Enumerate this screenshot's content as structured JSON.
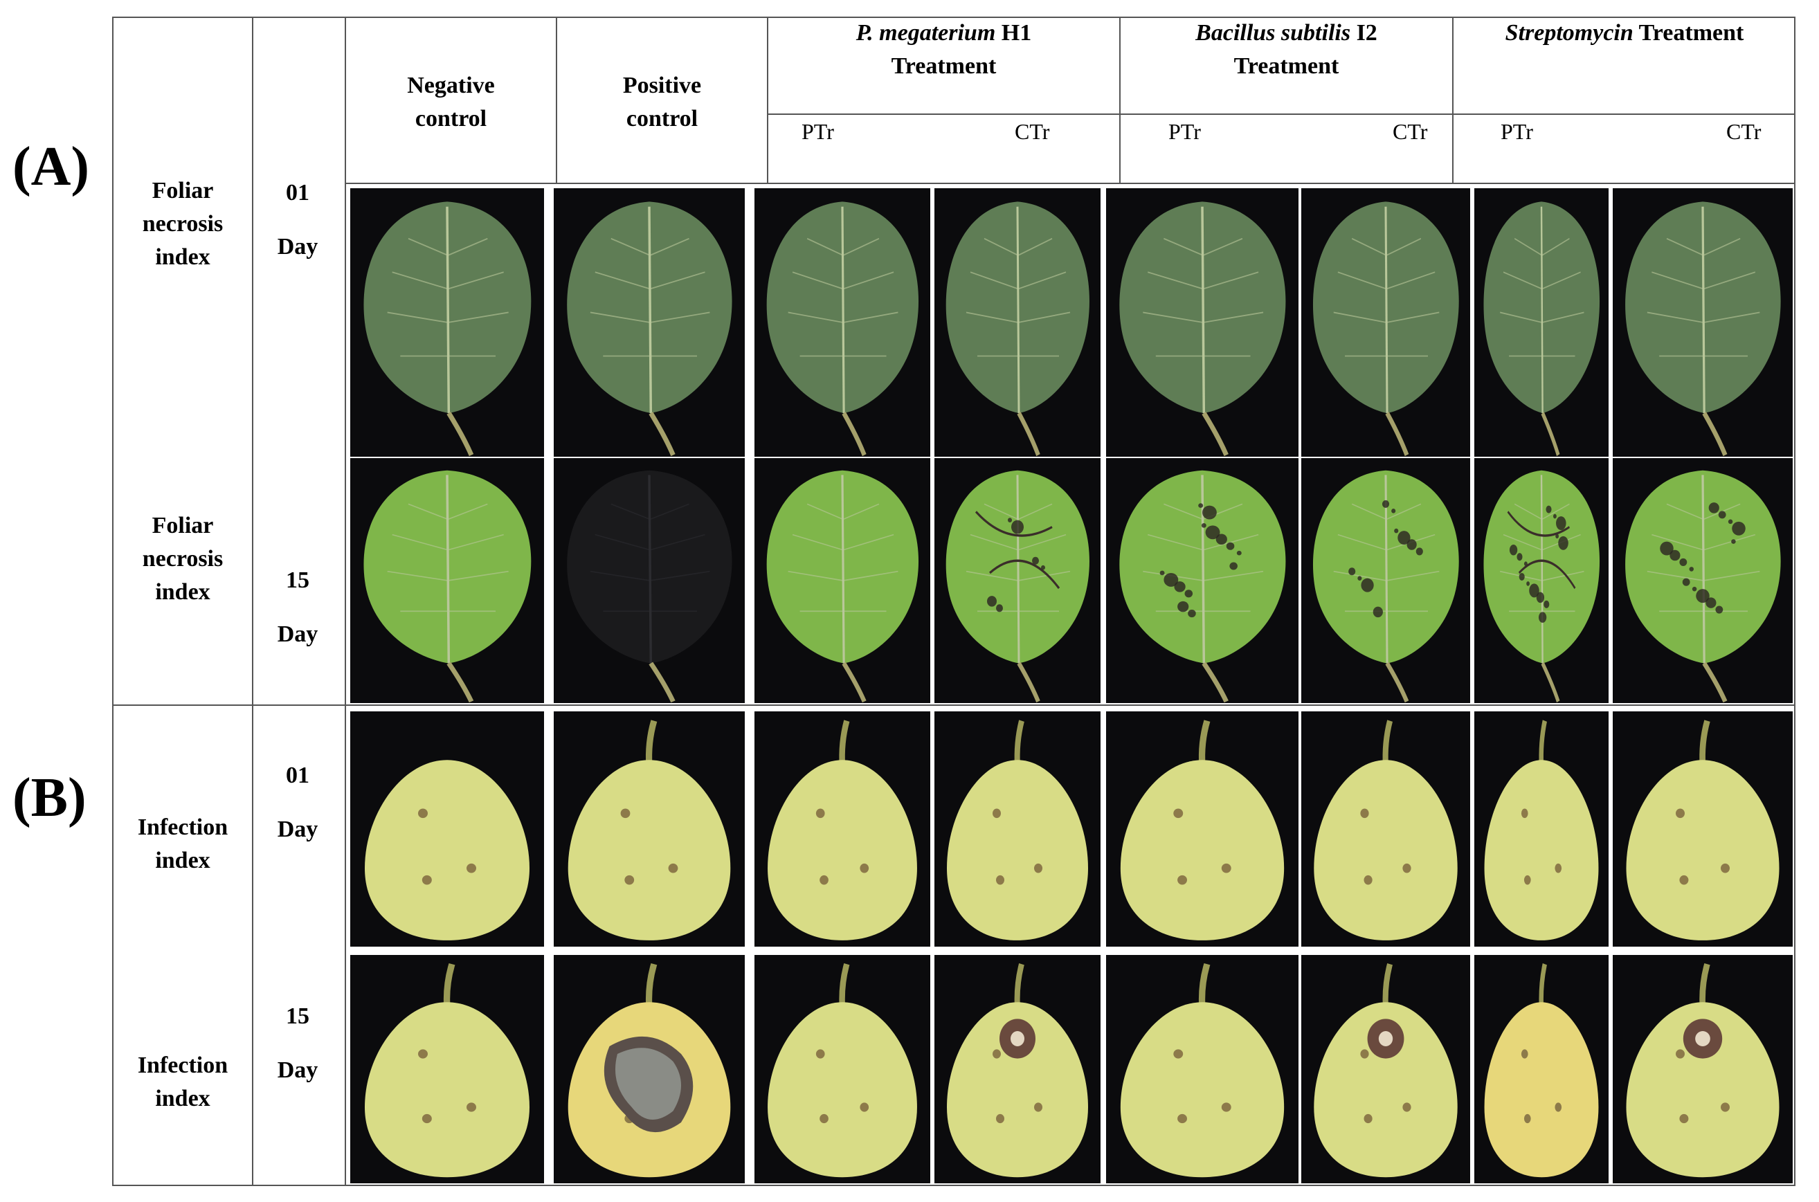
{
  "panels": {
    "a": "(A)",
    "b": "(B)"
  },
  "headers": {
    "negative_line1": "Negative",
    "negative_line2": "control",
    "positive_line1": "Positive",
    "positive_line2": "control",
    "pmeg_species": "P. megaterium",
    "pmeg_strain": " H1",
    "pmeg_line2": "Treatment",
    "bsub_species": "Bacillus subtilis",
    "bsub_strain": " I2",
    "bsub_line2": "Treatment",
    "strep_name": "Streptomycin",
    "strep_rest": " Treatment"
  },
  "subheaders": {
    "ptr": "PTr",
    "ctr": "CTr"
  },
  "rows": [
    {
      "label_lines": [
        "Foliar",
        "necrosis",
        "index"
      ],
      "day_lines": [
        "01",
        "Day"
      ],
      "kind": "leaf"
    },
    {
      "label_lines": [
        "Foliar",
        "necrosis",
        "index"
      ],
      "day_lines": [
        "15",
        "Day"
      ],
      "kind": "leaf"
    },
    {
      "label_lines": [
        "Infection",
        "index"
      ],
      "day_lines": [
        "01",
        "Day"
      ],
      "kind": "fruit"
    },
    {
      "label_lines": [
        "Infection",
        "index"
      ],
      "day_lines": [
        "15",
        "Day"
      ],
      "kind": "fruit"
    }
  ],
  "colors": {
    "leaf_healthy": "#5f7d55",
    "leaf_day15": "#7fb64a",
    "leaf_black": "#1a1a1c",
    "fruit": "#d8dc86",
    "fruit_ripe": "#e7d77a",
    "lesion": "#6a4a3e"
  }
}
